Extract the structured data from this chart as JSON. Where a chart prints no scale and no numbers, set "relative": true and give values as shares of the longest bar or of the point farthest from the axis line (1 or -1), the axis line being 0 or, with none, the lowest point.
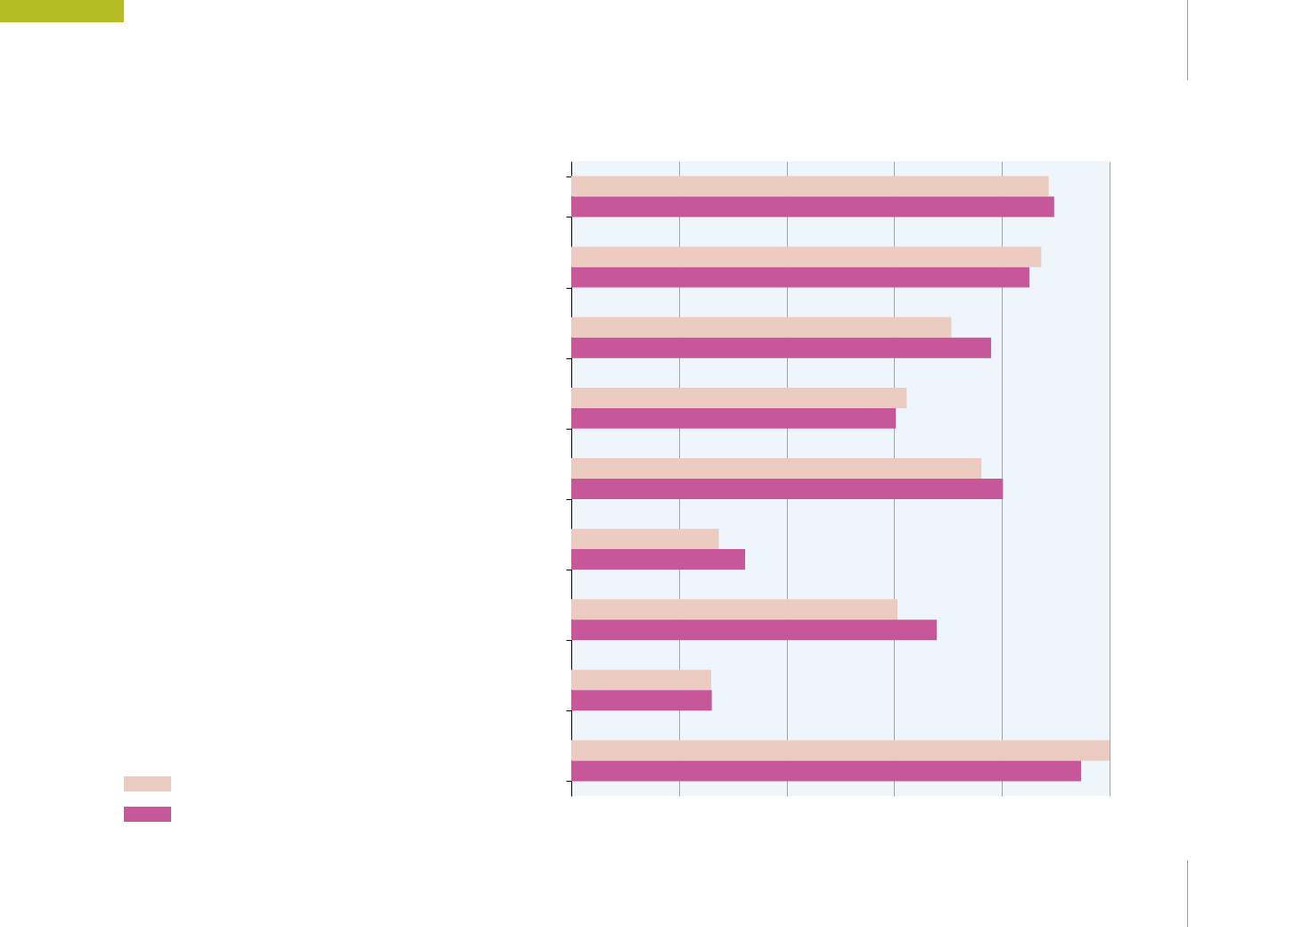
{
  "chart_data": {
    "type": "bar",
    "orientation": "horizontal",
    "relative": true,
    "grid": "x",
    "categories": [
      null,
      null,
      null,
      null,
      null,
      null,
      null,
      null,
      null
    ],
    "series": [
      {
        "color": "#ecccc0",
        "values": [
          0.887,
          0.873,
          0.706,
          0.623,
          0.762,
          0.274,
          0.606,
          0.26,
          1
        ]
      },
      {
        "color": "#c75799",
        "values": [
          0.897,
          0.851,
          0.78,
          0.603,
          0.802,
          0.323,
          0.679,
          0.261,
          0.947
        ]
      }
    ]
  }
}
